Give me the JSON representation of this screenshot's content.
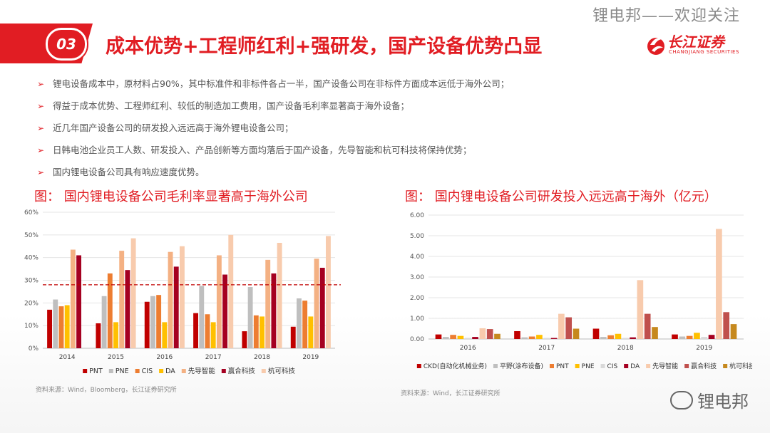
{
  "watermark_top": "锂电邦——欢迎关注",
  "header": {
    "number": "03",
    "title": "成本优势+工程师红利+强研发，国产设备优势凸显"
  },
  "logo": {
    "cn": "长江证券",
    "en": "CHANGJIANG SECURITIES"
  },
  "bullets": [
    "锂电设备成本中，原材料占90%，其中标准件和非标件各占一半，国产设备公司在非标件方面成本远低于海外公司；",
    "得益于成本优势、工程师红利、较低的制造加工费用，国产设备毛利率显著高于海外设备；",
    "近几年国产设备公司的研发投入远远高于海外锂电设备公司；",
    "日韩电池企业员工人数、研发投入、产品创新等方面均落后于国产设备，先导智能和杭可科技将保持优势；",
    "国内锂电设备公司具有响应速度优势。"
  ],
  "chart_data": [
    {
      "type": "bar",
      "title": "图： 国内锂电设备公司毛利率显著高于海外公司",
      "categories": [
        "2014",
        "2015",
        "2016",
        "2017",
        "2018",
        "2019"
      ],
      "y_ticks": [
        "0%",
        "10%",
        "20%",
        "30%",
        "40%",
        "50%",
        "60%"
      ],
      "ylim": [
        0,
        60
      ],
      "reference_line": 28,
      "series": [
        {
          "name": "PNT",
          "color": "#c00000",
          "values": [
            17,
            11,
            20.5,
            15.5,
            7.5,
            9.5
          ]
        },
        {
          "name": "PNE",
          "color": "#bfbfbf",
          "values": [
            21.5,
            23,
            23,
            27.5,
            27,
            22
          ]
        },
        {
          "name": "CIS",
          "color": "#ed7d31",
          "values": [
            18.5,
            33,
            23.5,
            15,
            14.5,
            21
          ]
        },
        {
          "name": "DA",
          "color": "#ffc000",
          "values": [
            19,
            11.5,
            11.5,
            11.5,
            14,
            14
          ]
        },
        {
          "name": "先导智能",
          "color": "#f4b183",
          "values": [
            43.5,
            43,
            42.5,
            41,
            39,
            39.5
          ]
        },
        {
          "name": "赢合科技",
          "color": "#a50021",
          "values": [
            41,
            34.5,
            36,
            32.5,
            33,
            35.5
          ]
        },
        {
          "name": "杭可科技",
          "color": "#f8cbad",
          "values": [
            null,
            48.5,
            45,
            50,
            46.5,
            49.5
          ]
        }
      ],
      "source": "资料来源：Wind，Bloomberg，长江证券研究所"
    },
    {
      "type": "bar",
      "title": "图： 国内锂电设备公司研发投入远远高于海外（亿元）",
      "categories": [
        "2016",
        "2017",
        "2018",
        "2019"
      ],
      "y_ticks": [
        "0.00",
        "1.00",
        "2.00",
        "3.00",
        "4.00",
        "5.00",
        "6.00"
      ],
      "ylim": [
        0,
        6
      ],
      "series": [
        {
          "name": "CKD(自动化机械业务)",
          "color": "#c00000",
          "values": [
            0.22,
            0.38,
            0.5,
            0.22
          ]
        },
        {
          "name": "平野(涂布设备)",
          "color": "#bfbfbf",
          "values": [
            0.1,
            0.08,
            0.1,
            0.12
          ]
        },
        {
          "name": "PNT",
          "color": "#ed7d31",
          "values": [
            0.2,
            0.12,
            0.18,
            0.15
          ]
        },
        {
          "name": "PNE",
          "color": "#ffc000",
          "values": [
            0.15,
            0.2,
            0.25,
            0.3
          ]
        },
        {
          "name": "CIS",
          "color": "#d9d9d9",
          "values": [
            0.05,
            0.05,
            0.05,
            0.1
          ]
        },
        {
          "name": "DA",
          "color": "#a50021",
          "values": [
            0.1,
            0.05,
            0.08,
            0.2
          ]
        },
        {
          "name": "先导智能",
          "color": "#f8cbad",
          "values": [
            0.52,
            1.22,
            2.85,
            5.33
          ]
        },
        {
          "name": "赢合科技",
          "color": "#c0504d",
          "values": [
            0.48,
            1.05,
            1.22,
            1.3
          ]
        },
        {
          "name": "杭可科技",
          "color": "#c6891e",
          "values": [
            0.25,
            0.5,
            0.58,
            0.72
          ]
        }
      ],
      "source": "资料来源：Wind，长江证券研究所"
    }
  ],
  "bottom_watermark": "锂电邦"
}
